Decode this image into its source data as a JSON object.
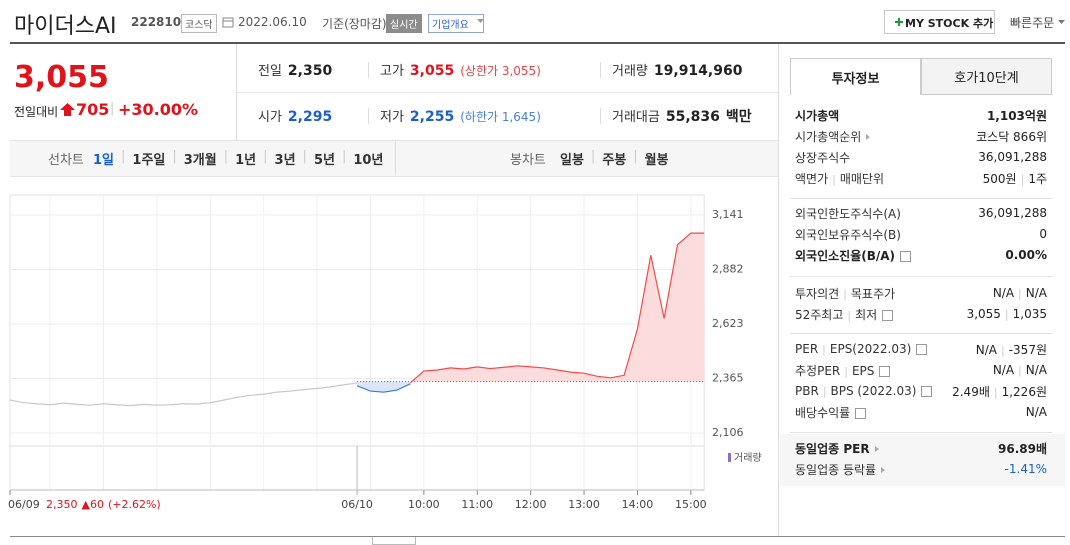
{
  "header": {
    "name": "마이더스AI",
    "code": "222810",
    "market": "코스닥",
    "date": "2022.06.10",
    "basis": "기준(장마감)",
    "realtime": "실시간",
    "overview": "기업개요",
    "mystock": "MY STOCK 추가",
    "quick_order": "빠른주문"
  },
  "price": {
    "current": "3,055",
    "change_label": "전일대비",
    "change": "705",
    "change_pct": "+30.00%",
    "color": "#e0131b"
  },
  "quote": [
    [
      {
        "label": "전일",
        "value": "2,350",
        "color": "#222222"
      },
      {
        "label": "고가",
        "value": "3,055",
        "sub": "(상한가 3,055)",
        "color": "#e0131b"
      },
      {
        "label": "거래량",
        "value": "19,914,960",
        "color": "#222222"
      }
    ],
    [
      {
        "label": "시가",
        "value": "2,295",
        "color": "#1a5fd0"
      },
      {
        "label": "저가",
        "value": "2,255",
        "sub": "(하한가 1,645)",
        "color": "#1a5fd0"
      },
      {
        "label": "거래대금",
        "value": "55,836",
        "unit": "백만",
        "color": "#222222"
      }
    ]
  ],
  "chart_tabs": {
    "line_label": "선차트",
    "line": [
      "1일",
      "1주일",
      "3개월",
      "1년",
      "3년",
      "5년",
      "10년"
    ],
    "candle_label": "봉차트",
    "candle": [
      "일봉",
      "주봉",
      "월봉"
    ]
  },
  "chart_data": {
    "type": "line",
    "categories": [
      "06/09",
      null,
      null,
      null,
      null,
      null,
      null,
      null,
      null,
      null,
      null,
      null,
      null,
      null,
      null,
      null,
      null,
      null,
      null,
      null,
      null,
      null,
      null,
      null,
      null,
      null,
      "06/10",
      null,
      null,
      null,
      null,
      "10:00",
      null,
      null,
      null,
      "11:00",
      null,
      null,
      null,
      "12:00",
      null,
      null,
      null,
      "13:00",
      null,
      null,
      null,
      "14:00",
      null,
      null,
      null,
      "15:00",
      null
    ],
    "series": [
      {
        "color": "#c8c8c8",
        "values": [
          2263,
          2250,
          2245,
          2240,
          2248,
          2242,
          2238,
          2245,
          2240,
          2236,
          2242,
          2238,
          2240,
          2245,
          2243,
          2250,
          2262,
          2275,
          2285,
          2290,
          2300,
          2305,
          2312,
          2318,
          2325,
          2335,
          2343,
          null,
          null,
          null,
          null,
          null,
          null,
          null,
          null,
          null,
          null,
          null,
          null,
          null,
          null,
          null,
          null,
          null,
          null,
          null,
          null,
          null,
          null,
          null,
          null,
          null,
          null
        ]
      },
      {
        "color": "#3d7fdb",
        "fill": "#dbe7f8",
        "values": [
          null,
          null,
          null,
          null,
          null,
          null,
          null,
          null,
          null,
          null,
          null,
          null,
          null,
          null,
          null,
          null,
          null,
          null,
          null,
          null,
          null,
          null,
          null,
          null,
          null,
          null,
          2330,
          2305,
          2300,
          2310,
          2340,
          null,
          null,
          null,
          null,
          null,
          null,
          null,
          null,
          null,
          null,
          null,
          null,
          null,
          null,
          null,
          null,
          null,
          null,
          null,
          null,
          null,
          null
        ]
      },
      {
        "color": "#f24b4b",
        "fill": "#fcdcdd",
        "values": [
          null,
          null,
          null,
          null,
          null,
          null,
          null,
          null,
          null,
          null,
          null,
          null,
          null,
          null,
          null,
          null,
          null,
          null,
          null,
          null,
          null,
          null,
          null,
          null,
          null,
          null,
          null,
          null,
          null,
          null,
          2345,
          2400,
          2405,
          2415,
          2410,
          2420,
          2412,
          2418,
          2425,
          2420,
          2415,
          2405,
          2395,
          2390,
          2375,
          2368,
          2380,
          2600,
          2950,
          2650,
          3000,
          3055,
          3055
        ]
      }
    ],
    "reference": 2350,
    "ylim": [
      2106,
      3141
    ],
    "yticks": [
      {
        "value": 3141,
        "label": "3,141"
      },
      {
        "value": 2882,
        "label": "2,882"
      },
      {
        "value": 2623,
        "label": "2,623"
      },
      {
        "value": 2365,
        "label": "2,365"
      },
      {
        "value": 2106,
        "label": "2,106"
      }
    ],
    "grid": true,
    "prev_note": {
      "close": "2,350",
      "change": "▲60",
      "pct": "(+2.62%)"
    },
    "volume_label": "거래량"
  },
  "info_tabs": [
    "투자정보",
    "호가10단계"
  ],
  "info": [
    [
      {
        "label": [
          "시가총액"
        ],
        "value": [
          "1,103억원"
        ],
        "bold": true
      },
      {
        "label": [
          "시가총액순위"
        ],
        "value": [
          "코스닥 866위"
        ],
        "arrow": true
      },
      {
        "label": [
          "상장주식수"
        ],
        "value": [
          "36,091,288"
        ]
      },
      {
        "label": [
          "액면가",
          "매매단위"
        ],
        "value": [
          "500원",
          "1주"
        ]
      }
    ],
    [
      {
        "label": [
          "외국인한도주식수(A)"
        ],
        "value": [
          "36,091,288"
        ]
      },
      {
        "label": [
          "외국인보유주식수(B)"
        ],
        "value": [
          "0"
        ]
      },
      {
        "label": [
          "외국인소진율(B/A)"
        ],
        "value": [
          "0.00%"
        ],
        "bold": true,
        "help": true
      }
    ],
    [
      {
        "label": [
          "투자의견",
          "목표주가"
        ],
        "value": [
          "N/A",
          "N/A"
        ]
      },
      {
        "label": [
          "52주최고",
          "최저"
        ],
        "value": [
          "3,055",
          "1,035"
        ],
        "help": true
      }
    ],
    [
      {
        "label": [
          "PER",
          "EPS(2022.03)"
        ],
        "value": [
          "N/A",
          "-357원"
        ],
        "help": true
      },
      {
        "label": [
          "추정PER",
          "EPS"
        ],
        "value": [
          "N/A",
          "N/A"
        ],
        "help": true
      },
      {
        "label": [
          "PBR",
          "BPS (2022.03)"
        ],
        "value": [
          "2.49배",
          "1,226원"
        ],
        "help": true
      },
      {
        "label": [
          "배당수익률"
        ],
        "value": [
          "N/A"
        ],
        "help": true
      }
    ],
    [
      {
        "label": [
          "동일업종 PER"
        ],
        "value": [
          "96.89배"
        ],
        "bold": true,
        "arrow": true
      },
      {
        "label": [
          "동일업종 등락률"
        ],
        "value": [
          "-1.41%"
        ],
        "arrow": true,
        "color": "#1a5fd0"
      }
    ]
  ]
}
